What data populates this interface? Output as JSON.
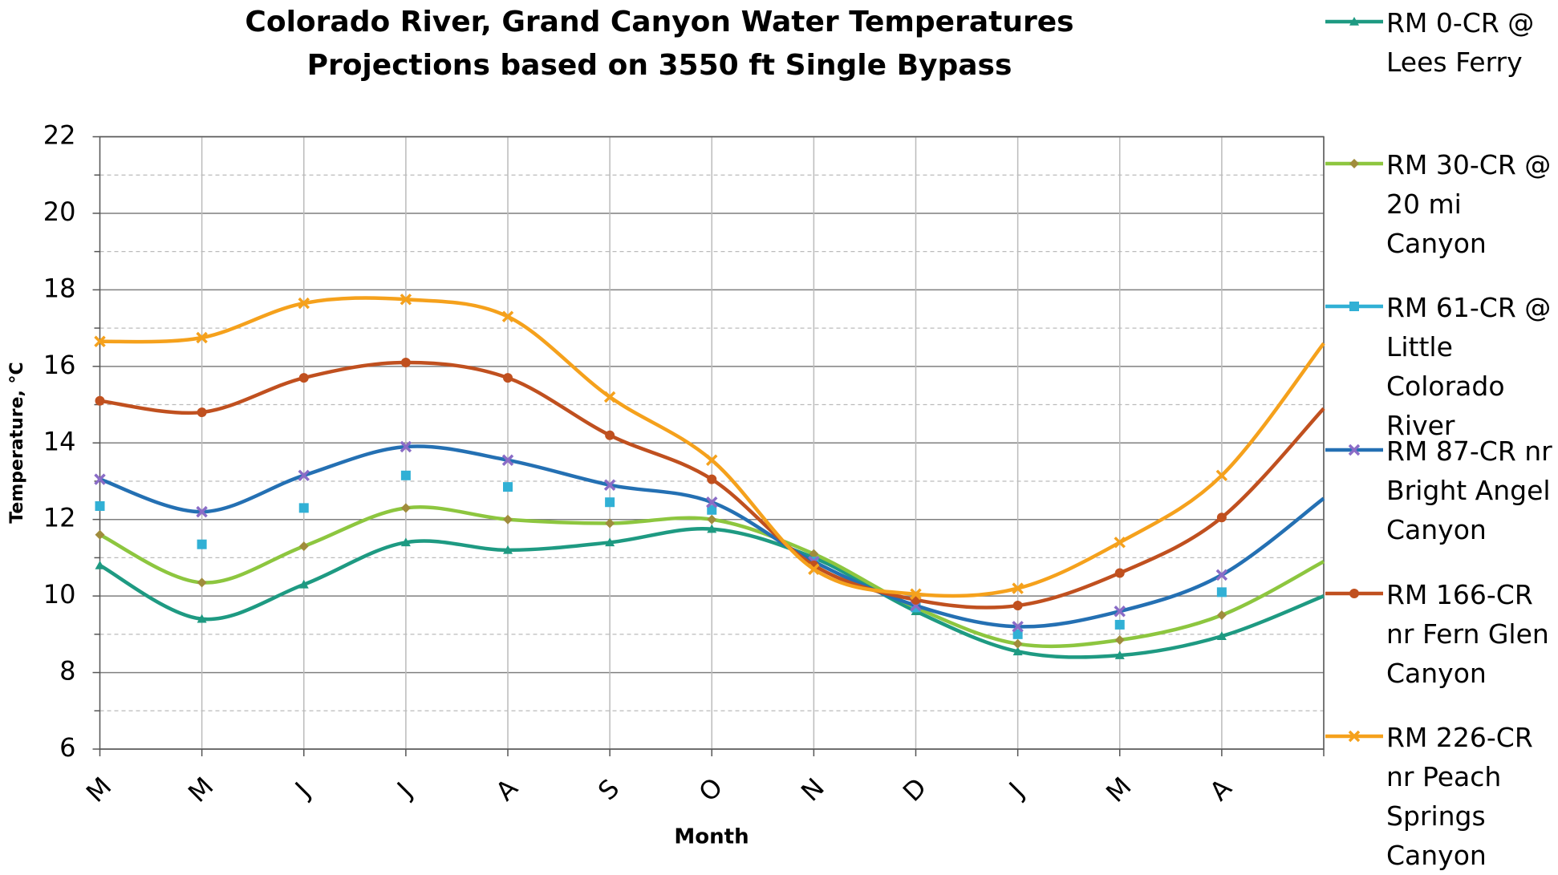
{
  "chart_data": {
    "type": "line",
    "title": "Colorado River, Grand Canyon Water Temperatures",
    "subtitle": "Projections based on 3550 ft Single Bypass",
    "x_label": "Month",
    "y_label": "Temperature, °C",
    "categories": [
      "M",
      "M",
      "J",
      "J",
      "A",
      "S",
      "O",
      "N",
      "D",
      "J",
      "M",
      "A",
      null
    ],
    "ylim": [
      6,
      22
    ],
    "yticks": [
      6,
      8,
      10,
      12,
      14,
      16,
      18,
      20,
      22
    ],
    "grid": true,
    "smooth": true,
    "legend_position": "right",
    "series": [
      {
        "name": "RM 0-CR @ Lees Ferry",
        "color": "#1e9a82",
        "marker": "triangle",
        "marker_color": "#1e9a82",
        "line": true,
        "values": [
          10.8,
          9.4,
          10.3,
          11.4,
          11.2,
          11.4,
          11.75,
          11.0,
          9.6,
          8.55,
          8.45,
          8.95,
          10.0
        ]
      },
      {
        "name": "RM 30-CR @ 20 mi Canyon",
        "color": "#8dc63f",
        "marker": "diamond",
        "marker_color": "#a08c3c",
        "line": true,
        "values": [
          11.6,
          10.35,
          11.3,
          12.3,
          12.0,
          11.9,
          12.0,
          11.1,
          9.7,
          8.75,
          8.85,
          9.5,
          10.9
        ]
      },
      {
        "name": "RM 61-CR @ Little Colorado River",
        "color": "#31b0d5",
        "marker": "square",
        "marker_color": "#31b0d5",
        "line": false,
        "values": [
          12.35,
          11.35,
          12.3,
          13.15,
          12.85,
          12.45,
          12.25,
          10.9,
          9.7,
          9.0,
          9.25,
          10.1,
          null
        ]
      },
      {
        "name": "RM 87-CR nr Bright Angel Canyon",
        "color": "#2470b3",
        "marker": "x",
        "marker_color": "#8a6cc7",
        "line": true,
        "values": [
          13.05,
          12.2,
          13.15,
          13.9,
          13.55,
          12.9,
          12.45,
          10.9,
          9.75,
          9.2,
          9.6,
          10.55,
          12.55
        ]
      },
      {
        "name": "RM 166-CR nr Fern Glen Canyon",
        "color": "#c0501f",
        "marker": "circle",
        "marker_color": "#c0501f",
        "line": true,
        "values": [
          15.1,
          14.8,
          15.7,
          16.1,
          15.7,
          14.2,
          13.05,
          10.8,
          9.9,
          9.75,
          10.6,
          12.05,
          14.9
        ]
      },
      {
        "name": "RM 226-CR nr Peach Springs Canyon",
        "color": "#f5a11c",
        "marker": "x",
        "marker_color": "#f5a11c",
        "line": true,
        "values": [
          16.65,
          16.75,
          17.65,
          17.75,
          17.3,
          15.2,
          13.55,
          10.7,
          10.05,
          10.2,
          11.4,
          13.15,
          16.6
        ]
      }
    ]
  }
}
